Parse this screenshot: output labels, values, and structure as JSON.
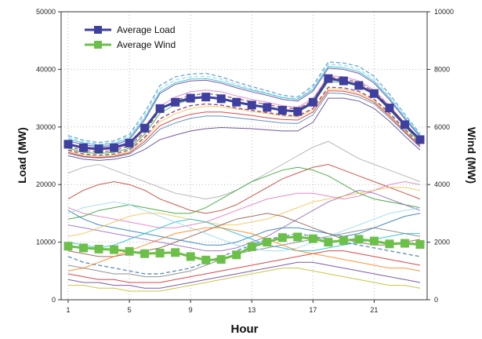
{
  "chart_data": {
    "type": "line",
    "xlabel": "Hour",
    "ylabel_left": "Load (MW)",
    "ylabel_right": "Wind (MW)",
    "x_ticks": [
      1,
      5,
      9,
      13,
      17,
      21
    ],
    "x_range": [
      1,
      24
    ],
    "y_left_range": [
      0,
      50000
    ],
    "y_left_ticks": [
      0,
      10000,
      20000,
      30000,
      40000,
      50000
    ],
    "y_right_range": [
      0,
      10000
    ],
    "y_right_ticks": [
      0,
      2000,
      4000,
      6000,
      8000,
      10000
    ],
    "grid": true,
    "legend_position": "top-left",
    "average_series": [
      {
        "name": "Average Load",
        "axis": "left",
        "color": "#3f3f9f",
        "marker": "square",
        "x": [
          1,
          2,
          3,
          4,
          5,
          6,
          7,
          8,
          9,
          10,
          11,
          12,
          13,
          14,
          15,
          16,
          17,
          18,
          19,
          20,
          21,
          22,
          23,
          24
        ],
        "values": [
          27000,
          26400,
          26200,
          26400,
          27200,
          29800,
          33200,
          34300,
          35000,
          35200,
          34900,
          34300,
          33800,
          33400,
          32900,
          32700,
          34300,
          38400,
          38000,
          37200,
          35800,
          33300,
          30400,
          27800
        ]
      },
      {
        "name": "Average Wind",
        "axis": "right",
        "color": "#6cc04a",
        "marker": "square",
        "x": [
          1,
          2,
          3,
          4,
          5,
          6,
          7,
          8,
          9,
          10,
          11,
          12,
          13,
          14,
          15,
          16,
          17,
          18,
          19,
          20,
          21,
          22,
          23,
          24
        ],
        "values": [
          1860,
          1800,
          1760,
          1740,
          1680,
          1600,
          1620,
          1640,
          1500,
          1380,
          1400,
          1560,
          1840,
          2000,
          2160,
          2180,
          2120,
          2000,
          2060,
          2100,
          2040,
          1940,
          1960,
          1920
        ]
      }
    ],
    "background_series": [
      {
        "axis": "left",
        "color": "#5b9bd5",
        "dashed": true,
        "values": [
          28500,
          27700,
          27300,
          27600,
          28700,
          32500,
          37200,
          38700,
          39200,
          39300,
          38700,
          37800,
          37000,
          36300,
          35500,
          35200,
          37200,
          41300,
          41100,
          40500,
          38800,
          35700,
          32200,
          28800
        ]
      },
      {
        "axis": "left",
        "color": "#9ad8f0",
        "dashed": true,
        "values": [
          28200,
          27400,
          27000,
          27300,
          28400,
          31900,
          36600,
          38200,
          38700,
          38800,
          38300,
          37400,
          36600,
          35900,
          35100,
          34900,
          36800,
          40900,
          40700,
          40000,
          38300,
          35300,
          31900,
          28600
        ]
      },
      {
        "axis": "left",
        "color": "#7b2d6b",
        "dashed": true,
        "values": [
          26000,
          25300,
          25100,
          25300,
          26000,
          28200,
          31400,
          32800,
          33700,
          34000,
          33800,
          33300,
          32900,
          32500,
          32100,
          31900,
          33200,
          36900,
          36800,
          36200,
          34800,
          32400,
          29600,
          27000
        ]
      },
      {
        "axis": "left",
        "color": "#6a3d9a",
        "dashed": false,
        "values": [
          27600,
          26900,
          26600,
          26800,
          27800,
          31200,
          35800,
          37400,
          38000,
          38100,
          37600,
          36800,
          36100,
          35500,
          34800,
          34500,
          36200,
          40200,
          40000,
          39300,
          37600,
          34700,
          31400,
          28300
        ]
      },
      {
        "axis": "left",
        "color": "#e377c2",
        "dashed": false,
        "values": [
          26900,
          26200,
          26000,
          26200,
          27000,
          29500,
          33600,
          35200,
          36100,
          36400,
          36100,
          35400,
          34800,
          34300,
          33700,
          33400,
          34900,
          38900,
          38700,
          38000,
          36400,
          33700,
          30700,
          27800
        ]
      },
      {
        "axis": "left",
        "color": "#2ca02c",
        "dashed": false,
        "values": [
          26300,
          25600,
          25400,
          25600,
          26300,
          28700,
          32400,
          33900,
          34800,
          35100,
          34900,
          34300,
          33800,
          33300,
          32800,
          32600,
          34000,
          37900,
          37700,
          37100,
          35600,
          33000,
          30100,
          27300
        ]
      },
      {
        "axis": "left",
        "color": "#f2c14e",
        "dashed": false,
        "values": [
          25800,
          25100,
          24900,
          25100,
          25700,
          27900,
          30900,
          32300,
          33200,
          33600,
          33500,
          33100,
          32700,
          32300,
          31900,
          31700,
          33000,
          36600,
          36500,
          35900,
          34600,
          32100,
          29400,
          26800
        ]
      },
      {
        "axis": "left",
        "color": "#4a7fb0",
        "dashed": false,
        "values": [
          25400,
          24800,
          24600,
          24800,
          25300,
          27100,
          29600,
          30700,
          31500,
          31900,
          31900,
          31600,
          31300,
          31000,
          30700,
          30600,
          32100,
          35900,
          35800,
          35200,
          34000,
          31600,
          29000,
          26500
        ]
      },
      {
        "axis": "left",
        "color": "#8c564b",
        "dashed": true,
        "values": [
          26600,
          25900,
          25700,
          25900,
          26700,
          29100,
          33000,
          34600,
          35500,
          35800,
          35500,
          34900,
          34400,
          33900,
          33400,
          33100,
          34600,
          38600,
          38400,
          37700,
          36100,
          33500,
          30500,
          27600
        ]
      },
      {
        "axis": "left",
        "color": "#17becf",
        "dashed": false,
        "values": [
          27900,
          27200,
          26900,
          27100,
          28100,
          31500,
          36100,
          37700,
          38300,
          38400,
          37900,
          37100,
          36400,
          35800,
          35100,
          34800,
          36500,
          40500,
          40300,
          39600,
          37900,
          35000,
          31600,
          28500
        ]
      },
      {
        "axis": "left",
        "color": "#d62728",
        "dashed": false,
        "values": [
          25600,
          24900,
          24700,
          24900,
          25500,
          27500,
          30200,
          31400,
          32200,
          32600,
          32600,
          32300,
          32000,
          31600,
          31300,
          31200,
          32600,
          36300,
          36200,
          35600,
          34300,
          31900,
          29200,
          26700
        ]
      },
      {
        "axis": "left",
        "color": "#5a3c8c",
        "dashed": false,
        "values": [
          25000,
          24400,
          24200,
          24400,
          24900,
          26100,
          27800,
          28600,
          29300,
          29700,
          29900,
          29800,
          29700,
          29500,
          29300,
          29300,
          30800,
          35000,
          35000,
          34500,
          33200,
          31000,
          28400,
          26000
        ]
      },
      {
        "axis": "right",
        "color": "#a9a9a9",
        "dashed": false,
        "values": [
          4400,
          4600,
          4700,
          4500,
          4300,
          4100,
          3900,
          3700,
          3600,
          3500,
          3600,
          3800,
          4100,
          4400,
          4700,
          5000,
          5300,
          5500,
          5200,
          4900,
          4700,
          4500,
          4300,
          4100
        ]
      },
      {
        "axis": "right",
        "color": "#c0392b",
        "dashed": false,
        "values": [
          3500,
          3800,
          4000,
          4100,
          4000,
          3800,
          3500,
          3300,
          3100,
          3000,
          3100,
          3300,
          3600,
          3900,
          4200,
          4400,
          4600,
          4700,
          4500,
          4300,
          4100,
          3900,
          3700,
          3500
        ]
      },
      {
        "axis": "right",
        "color": "#e377c2",
        "dashed": false,
        "values": [
          3200,
          3000,
          2900,
          2800,
          2700,
          2600,
          2500,
          2500,
          2600,
          2700,
          2900,
          3100,
          3300,
          3500,
          3600,
          3700,
          3700,
          3600,
          3500,
          3600,
          3800,
          4000,
          4100,
          4000
        ]
      },
      {
        "axis": "right",
        "color": "#2ca02c",
        "dashed": false,
        "values": [
          2800,
          2900,
          3100,
          3200,
          3300,
          3200,
          3100,
          3000,
          3000,
          3200,
          3500,
          3800,
          4100,
          4300,
          4500,
          4600,
          4500,
          4300,
          4000,
          3700,
          3500,
          3400,
          3300,
          3200
        ]
      },
      {
        "axis": "right",
        "color": "#1f77b4",
        "dashed": false,
        "values": [
          3100,
          2800,
          2600,
          2500,
          2400,
          2300,
          2200,
          2100,
          2000,
          1900,
          1900,
          2000,
          2200,
          2400,
          2500,
          2500,
          2400,
          2300,
          2200,
          2300,
          2500,
          2700,
          2900,
          3000
        ]
      },
      {
        "axis": "right",
        "color": "#9467bd",
        "dashed": false,
        "values": [
          2600,
          2500,
          2400,
          2300,
          2200,
          2100,
          2000,
          1900,
          1800,
          1700,
          1700,
          1800,
          2000,
          2200,
          2500,
          2800,
          3100,
          3400,
          3600,
          3800,
          3700,
          3500,
          3300,
          3100
        ]
      },
      {
        "axis": "right",
        "color": "#f2c14e",
        "dashed": false,
        "values": [
          2200,
          2300,
          2500,
          2700,
          2900,
          3000,
          3000,
          2900,
          2800,
          2700,
          2600,
          2600,
          2700,
          2800,
          3000,
          3200,
          3400,
          3500,
          3600,
          3700,
          3800,
          3900,
          3900,
          3800
        ]
      },
      {
        "axis": "right",
        "color": "#17becf",
        "dashed": false,
        "values": [
          2000,
          1900,
          1800,
          1900,
          2100,
          2300,
          2500,
          2700,
          2800,
          2700,
          2500,
          2300,
          2100,
          1900,
          1800,
          1700,
          1700,
          1800,
          1900,
          2000,
          2100,
          2200,
          2300,
          2300
        ]
      },
      {
        "axis": "right",
        "color": "#8c564b",
        "dashed": false,
        "values": [
          1700,
          1600,
          1500,
          1500,
          1600,
          1700,
          1800,
          2000,
          2200,
          2400,
          2600,
          2800,
          2900,
          3000,
          2900,
          2700,
          2500,
          2300,
          2100,
          2000,
          1900,
          1900,
          2000,
          2100
        ]
      },
      {
        "axis": "right",
        "color": "#4a7fb0",
        "dashed": true,
        "values": [
          1500,
          1300,
          1200,
          1100,
          1000,
          900,
          900,
          1000,
          1100,
          1300,
          1500,
          1700,
          1900,
          2100,
          2200,
          2300,
          2200,
          2100,
          2000,
          1900,
          1800,
          1700,
          1600,
          1500
        ]
      },
      {
        "axis": "right",
        "color": "#7f7f7f",
        "dashed": false,
        "values": [
          1200,
          1100,
          1000,
          900,
          900,
          800,
          800,
          900,
          1000,
          1200,
          1400,
          1600,
          1700,
          1800,
          1900,
          2000,
          2100,
          2200,
          2300,
          2400,
          2500,
          2400,
          2300,
          2200
        ]
      },
      {
        "axis": "right",
        "color": "#d62728",
        "dashed": false,
        "values": [
          900,
          800,
          700,
          700,
          600,
          600,
          600,
          700,
          800,
          900,
          1000,
          1100,
          1200,
          1300,
          1400,
          1500,
          1600,
          1700,
          1700,
          1600,
          1500,
          1400,
          1300,
          1200
        ]
      },
      {
        "axis": "right",
        "color": "#6a3d9a",
        "dashed": false,
        "values": [
          700,
          600,
          600,
          500,
          500,
          400,
          400,
          500,
          600,
          700,
          800,
          900,
          1000,
          1100,
          1200,
          1300,
          1300,
          1200,
          1100,
          1000,
          900,
          800,
          700,
          600
        ]
      },
      {
        "axis": "right",
        "color": "#bcbd22",
        "dashed": false,
        "values": [
          500,
          500,
          400,
          400,
          300,
          300,
          300,
          400,
          500,
          600,
          700,
          800,
          900,
          1000,
          1100,
          1100,
          1000,
          900,
          800,
          700,
          600,
          500,
          500,
          400
        ]
      },
      {
        "axis": "right",
        "color": "#9ad8f0",
        "dashed": false,
        "values": [
          3000,
          3200,
          3300,
          3400,
          3300,
          3100,
          2900,
          2700,
          2500,
          2300,
          2100,
          1900,
          1800,
          1700,
          1700,
          1800,
          2000,
          2200,
          2400,
          2600,
          2800,
          3000,
          3100,
          3200
        ]
      },
      {
        "axis": "right",
        "color": "#ff7f0e",
        "dashed": false,
        "values": [
          1000,
          1100,
          1300,
          1500,
          1700,
          1900,
          2100,
          2300,
          2400,
          2500,
          2500,
          2400,
          2300,
          2100,
          1900,
          1700,
          1600,
          1500,
          1400,
          1300,
          1200,
          1100,
          1100,
          1000
        ]
      }
    ]
  }
}
